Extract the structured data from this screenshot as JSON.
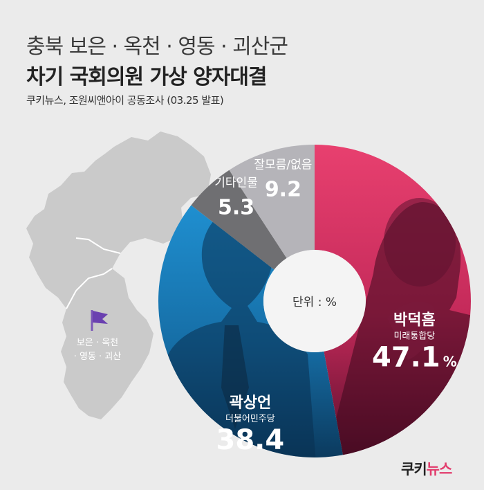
{
  "header": {
    "title_line1": "충북 보은 · 옥천 · 영동 · 괴산군",
    "title_line2": "차기 국회의원 가상 양자대결",
    "source": "쿠키뉴스, 조원씨앤아이 공동조사 (03.25 발표)"
  },
  "map": {
    "region_line1": "보은 · 옥천",
    "region_line2": "· 영동 · 괴산",
    "fill_color": "#cacaca",
    "marker": "flag-icon"
  },
  "chart_data": {
    "type": "pie",
    "unit_label": "단위 : %",
    "slices": [
      {
        "name": "박덕흠",
        "party": "미래통합당",
        "value": 47.1,
        "display": "47.1",
        "suffix": "%",
        "color": "#e23b6c"
      },
      {
        "name": "곽상언",
        "party": "더불어민주당",
        "value": 38.4,
        "display": "38.4",
        "suffix": "",
        "color": "#1f8fd0"
      },
      {
        "name": "기타인물",
        "party": "",
        "value": 5.3,
        "display": "5.3",
        "suffix": "",
        "color": "#6f6f72"
      },
      {
        "name": "잘모름/없음",
        "party": "",
        "value": 9.2,
        "display": "9.2",
        "suffix": "",
        "color": "#b5b4b9"
      }
    ]
  },
  "brand": {
    "logo_part1": "쿠키",
    "logo_part2": "뉴스",
    "accent": "#e23b6c"
  }
}
